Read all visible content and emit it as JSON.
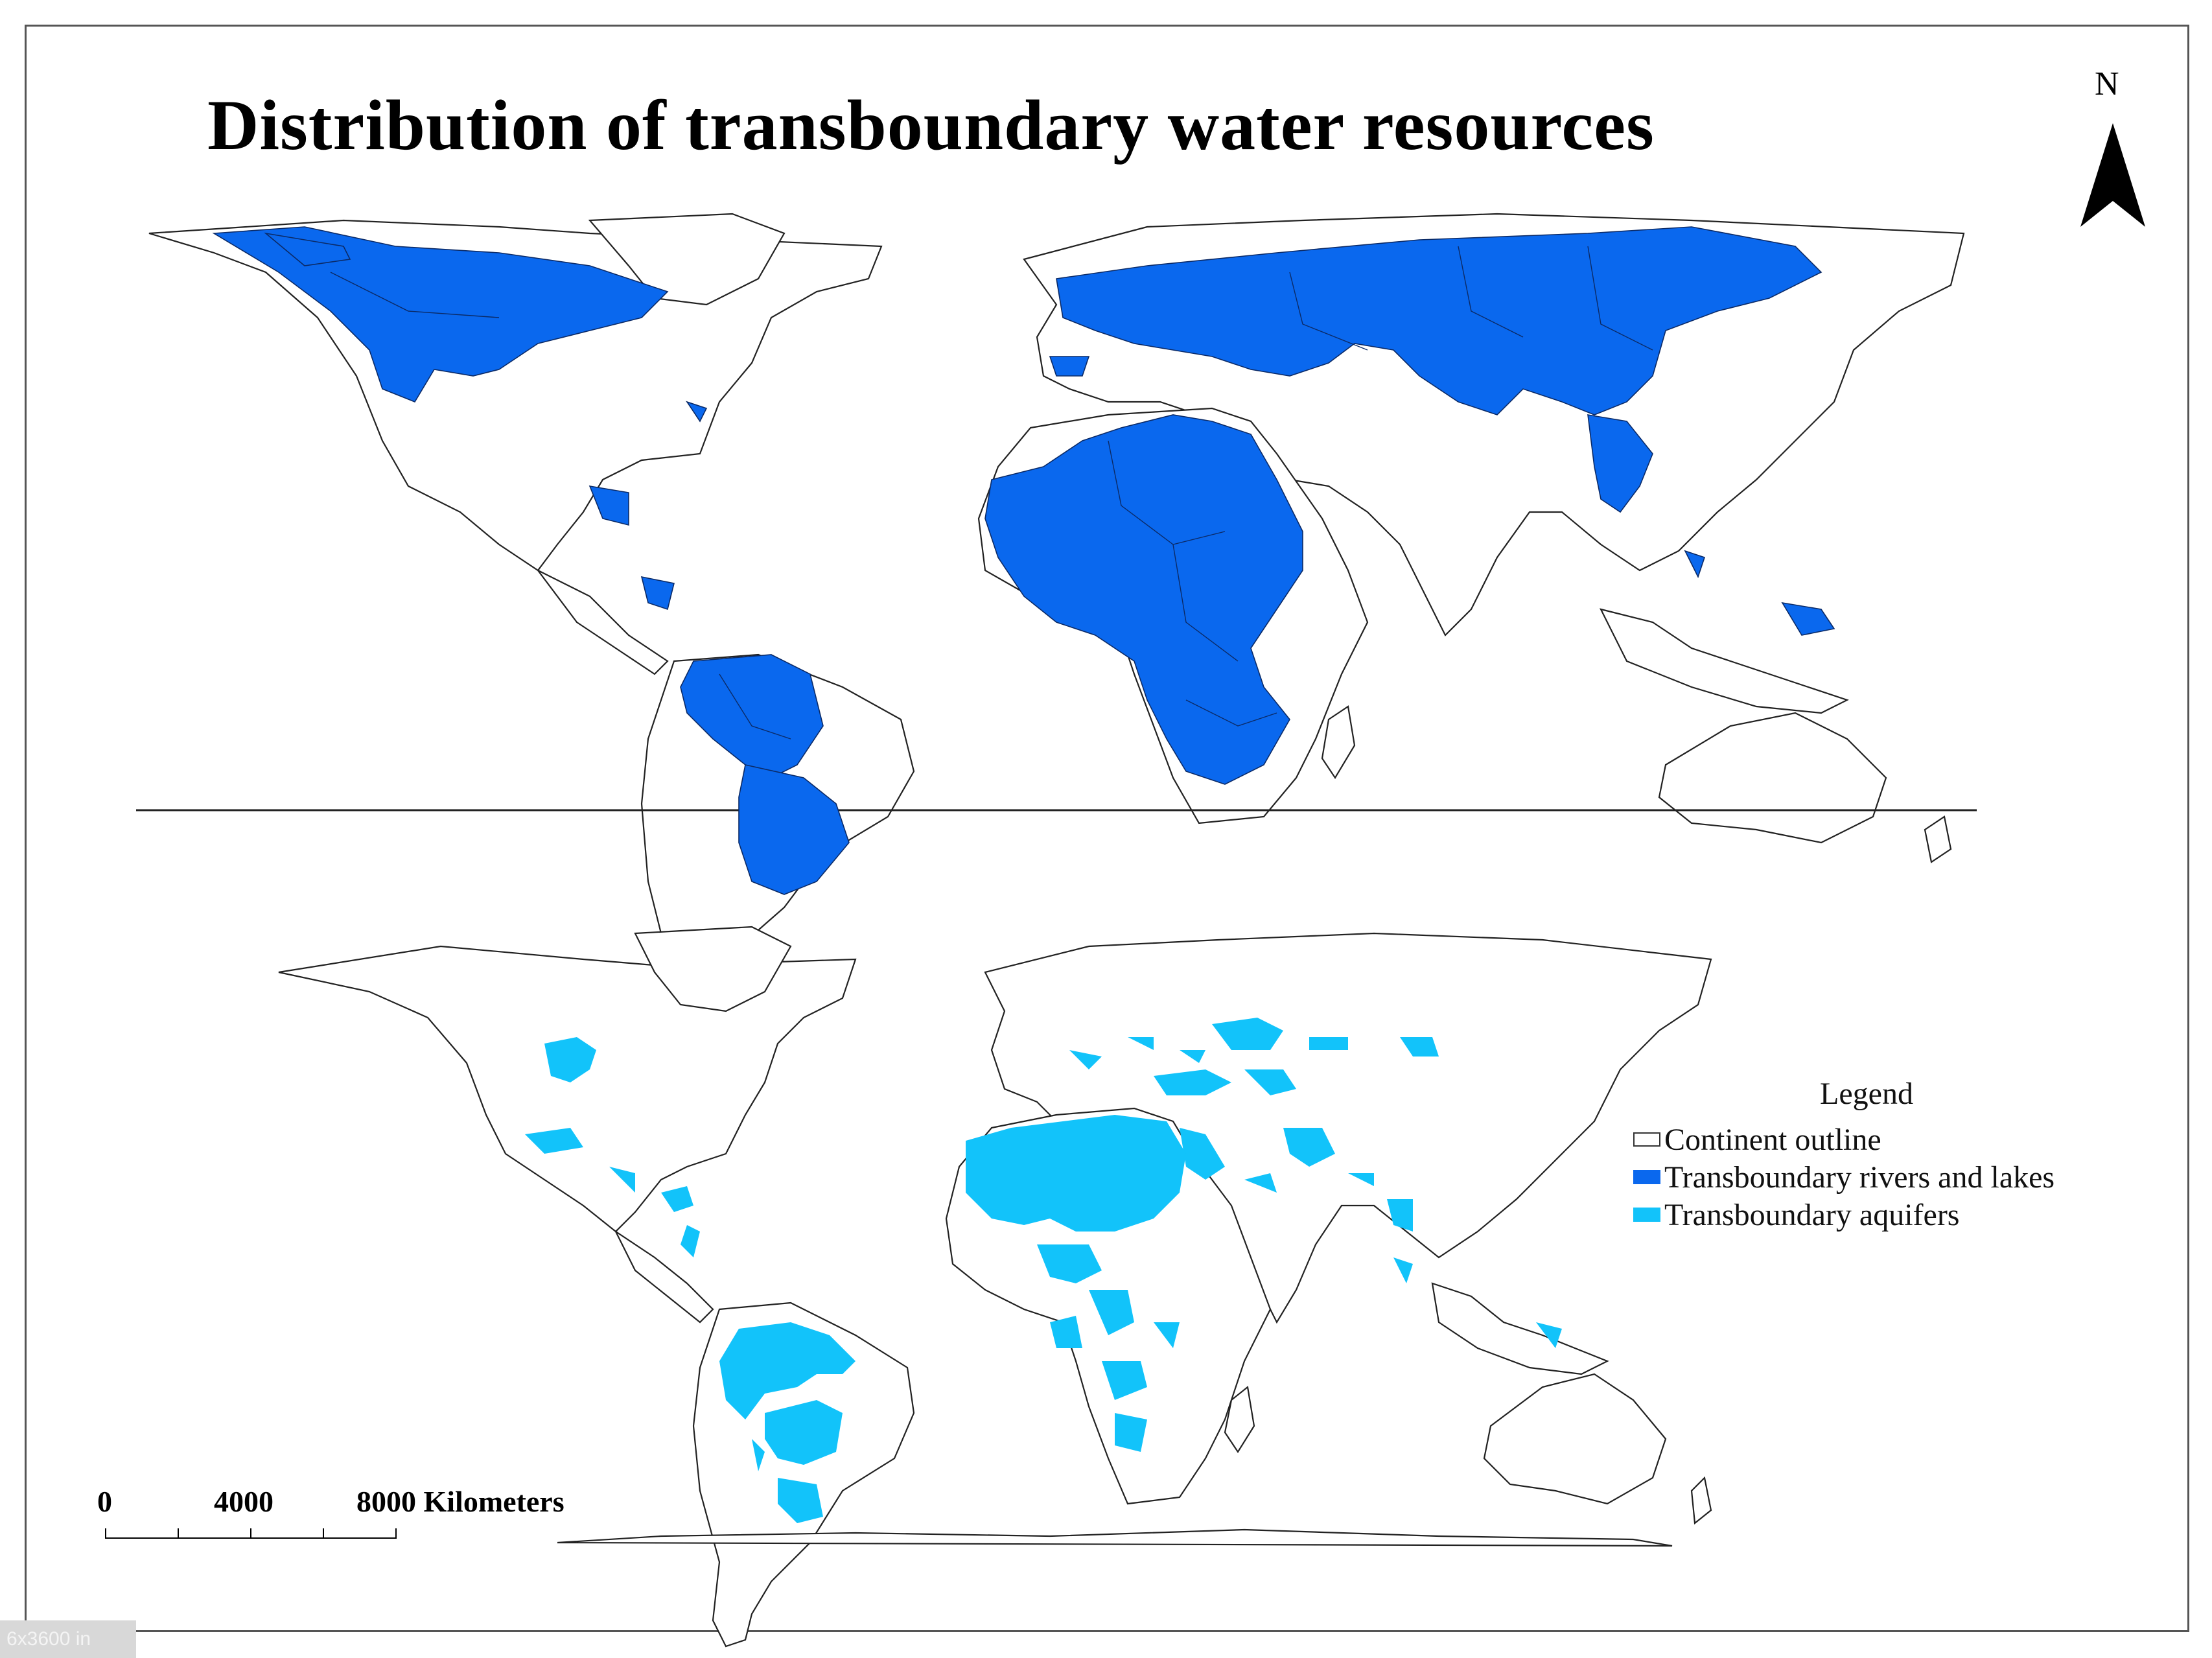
{
  "title": "Distribution of transboundary water resources",
  "north_arrow": {
    "label": "N"
  },
  "legend": {
    "title": "Legend",
    "items": [
      {
        "label": "Continent outline",
        "color": "#ffffff",
        "border": "#333333"
      },
      {
        "label": "Transboundary rivers and lakes",
        "color": "#0a68ee"
      },
      {
        "label": "Transboundary aquifers",
        "color": "#12c3fa"
      }
    ]
  },
  "scale_bar": {
    "ticks": [
      "0",
      "4000",
      "8000 Kilometers"
    ]
  },
  "watermark": "6x3600 in",
  "maps": [
    {
      "id": "rivers",
      "layer": "Transboundary rivers and lakes"
    },
    {
      "id": "aquifers",
      "layer": "Transboundary aquifers"
    }
  ]
}
